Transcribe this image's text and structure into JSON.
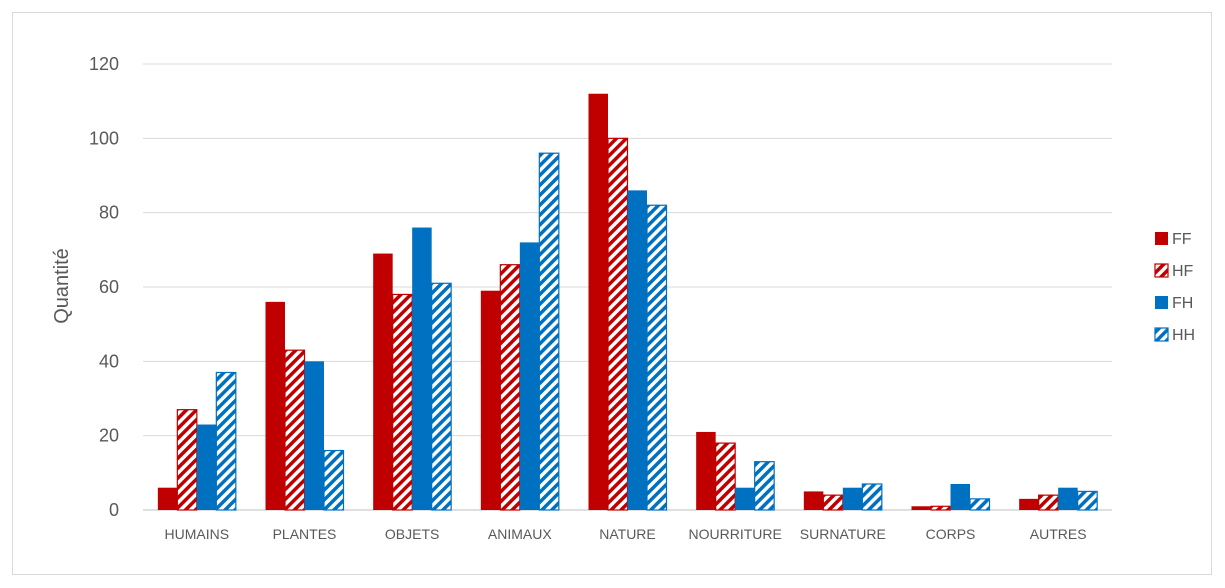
{
  "chart_data": {
    "type": "bar",
    "title": "",
    "xlabel": "",
    "ylabel": "Quantité",
    "ylim": [
      0,
      120
    ],
    "yticks": [
      0,
      20,
      40,
      60,
      80,
      100,
      120
    ],
    "grid": true,
    "legend_position": "right",
    "categories": [
      "HUMAINS",
      "PLANTES",
      "OBJETS",
      "ANIMAUX",
      "NATURE",
      "NOURRITURE",
      "SURNATURE",
      "CORPS",
      "AUTRES"
    ],
    "series": [
      {
        "name": "FF",
        "color": "#c00000",
        "pattern": "solid",
        "values": [
          6,
          56,
          69,
          59,
          112,
          21,
          5,
          1,
          3
        ]
      },
      {
        "name": "HF",
        "color": "#c00000",
        "pattern": "hatched",
        "values": [
          27,
          43,
          58,
          66,
          100,
          18,
          4,
          1,
          4
        ]
      },
      {
        "name": "FH",
        "color": "#0070c0",
        "pattern": "solid",
        "values": [
          23,
          40,
          76,
          72,
          86,
          6,
          6,
          7,
          6
        ]
      },
      {
        "name": "HH",
        "color": "#0070c0",
        "pattern": "hatched",
        "values": [
          37,
          16,
          61,
          96,
          82,
          13,
          7,
          3,
          5
        ]
      }
    ]
  }
}
